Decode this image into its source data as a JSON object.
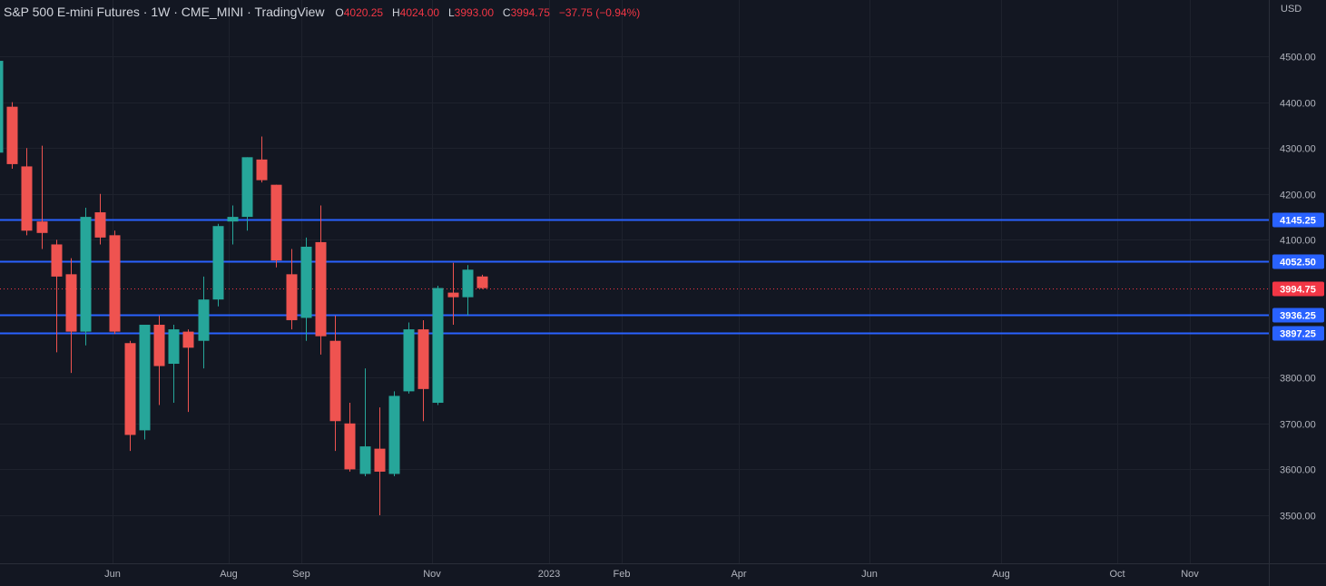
{
  "header": {
    "title": "S&P 500 E-mini Futures · 1W · CME_MINI · TradingView",
    "open_label": "O",
    "open_value": "4020.25",
    "high_label": "H",
    "high_value": "4024.00",
    "low_label": "L",
    "low_value": "3993.00",
    "close_label": "C",
    "close_value": "3994.75",
    "change": "−37.75 (−0.94%)"
  },
  "colors": {
    "background": "#131722",
    "up": "#26a69a",
    "down": "#ef5350",
    "hline": "#2962ff",
    "last_price": "#f23645",
    "axis_text": "#b2b5be",
    "grid": "#1e222d"
  },
  "chart_data": {
    "type": "candlestick",
    "currency": "USD",
    "ylim": [
      3430,
      4600
    ],
    "yticks": [
      "4500.00",
      "4400.00",
      "4300.00",
      "4200.00",
      "4100.00",
      "3800.00",
      "3700.00",
      "3600.00",
      "3500.00"
    ],
    "xticks": [
      "Jun",
      "Aug",
      "Sep",
      "Nov",
      "2023",
      "Feb",
      "Apr",
      "Jun",
      "Aug",
      "Oct",
      "Nov"
    ],
    "horizontal_levels": [
      "4145.25",
      "4052.50",
      "3936.25",
      "3897.25"
    ],
    "last_price": "3994.75",
    "candles": [
      {
        "o": 4290,
        "h": 4510,
        "l": 4240,
        "c": 4490
      },
      {
        "o": 4390,
        "h": 4400,
        "l": 4255,
        "c": 4265
      },
      {
        "o": 4260,
        "h": 4300,
        "l": 4110,
        "c": 4120
      },
      {
        "o": 4140,
        "h": 4305,
        "l": 4080,
        "c": 4115
      },
      {
        "o": 4090,
        "h": 4100,
        "l": 3855,
        "c": 4020
      },
      {
        "o": 4025,
        "h": 4060,
        "l": 3810,
        "c": 3900
      },
      {
        "o": 3900,
        "h": 4170,
        "l": 3870,
        "c": 4150
      },
      {
        "o": 4160,
        "h": 4200,
        "l": 4090,
        "c": 4105
      },
      {
        "o": 4110,
        "h": 4120,
        "l": 3895,
        "c": 3900
      },
      {
        "o": 3875,
        "h": 3880,
        "l": 3640,
        "c": 3675
      },
      {
        "o": 3685,
        "h": 3915,
        "l": 3665,
        "c": 3915
      },
      {
        "o": 3915,
        "h": 3935,
        "l": 3740,
        "c": 3825
      },
      {
        "o": 3830,
        "h": 3915,
        "l": 3745,
        "c": 3905
      },
      {
        "o": 3900,
        "h": 3905,
        "l": 3725,
        "c": 3865
      },
      {
        "o": 3880,
        "h": 4020,
        "l": 3820,
        "c": 3970
      },
      {
        "o": 3970,
        "h": 4135,
        "l": 3955,
        "c": 4130
      },
      {
        "o": 4140,
        "h": 4175,
        "l": 4090,
        "c": 4150
      },
      {
        "o": 4150,
        "h": 4280,
        "l": 4120,
        "c": 4280
      },
      {
        "o": 4275,
        "h": 4325,
        "l": 4225,
        "c": 4230
      },
      {
        "o": 4220,
        "h": 4220,
        "l": 4040,
        "c": 4055
      },
      {
        "o": 4025,
        "h": 4080,
        "l": 3905,
        "c": 3925
      },
      {
        "o": 3930,
        "h": 4105,
        "l": 3880,
        "c": 4085
      },
      {
        "o": 4095,
        "h": 4175,
        "l": 3850,
        "c": 3890
      },
      {
        "o": 3880,
        "h": 3935,
        "l": 3640,
        "c": 3705
      },
      {
        "o": 3700,
        "h": 3745,
        "l": 3595,
        "c": 3600
      },
      {
        "o": 3590,
        "h": 3820,
        "l": 3585,
        "c": 3650
      },
      {
        "o": 3645,
        "h": 3735,
        "l": 3500,
        "c": 3595
      },
      {
        "o": 3590,
        "h": 3770,
        "l": 3585,
        "c": 3760
      },
      {
        "o": 3770,
        "h": 3920,
        "l": 3765,
        "c": 3905
      },
      {
        "o": 3905,
        "h": 3925,
        "l": 3705,
        "c": 3775
      },
      {
        "o": 3745,
        "h": 4000,
        "l": 3740,
        "c": 3995
      },
      {
        "o": 3985,
        "h": 4050,
        "l": 3915,
        "c": 3975
      },
      {
        "o": 3975,
        "h": 4045,
        "l": 3935,
        "c": 4035
      },
      {
        "o": 4020.25,
        "h": 4024,
        "l": 3993,
        "c": 3994.75
      }
    ]
  }
}
